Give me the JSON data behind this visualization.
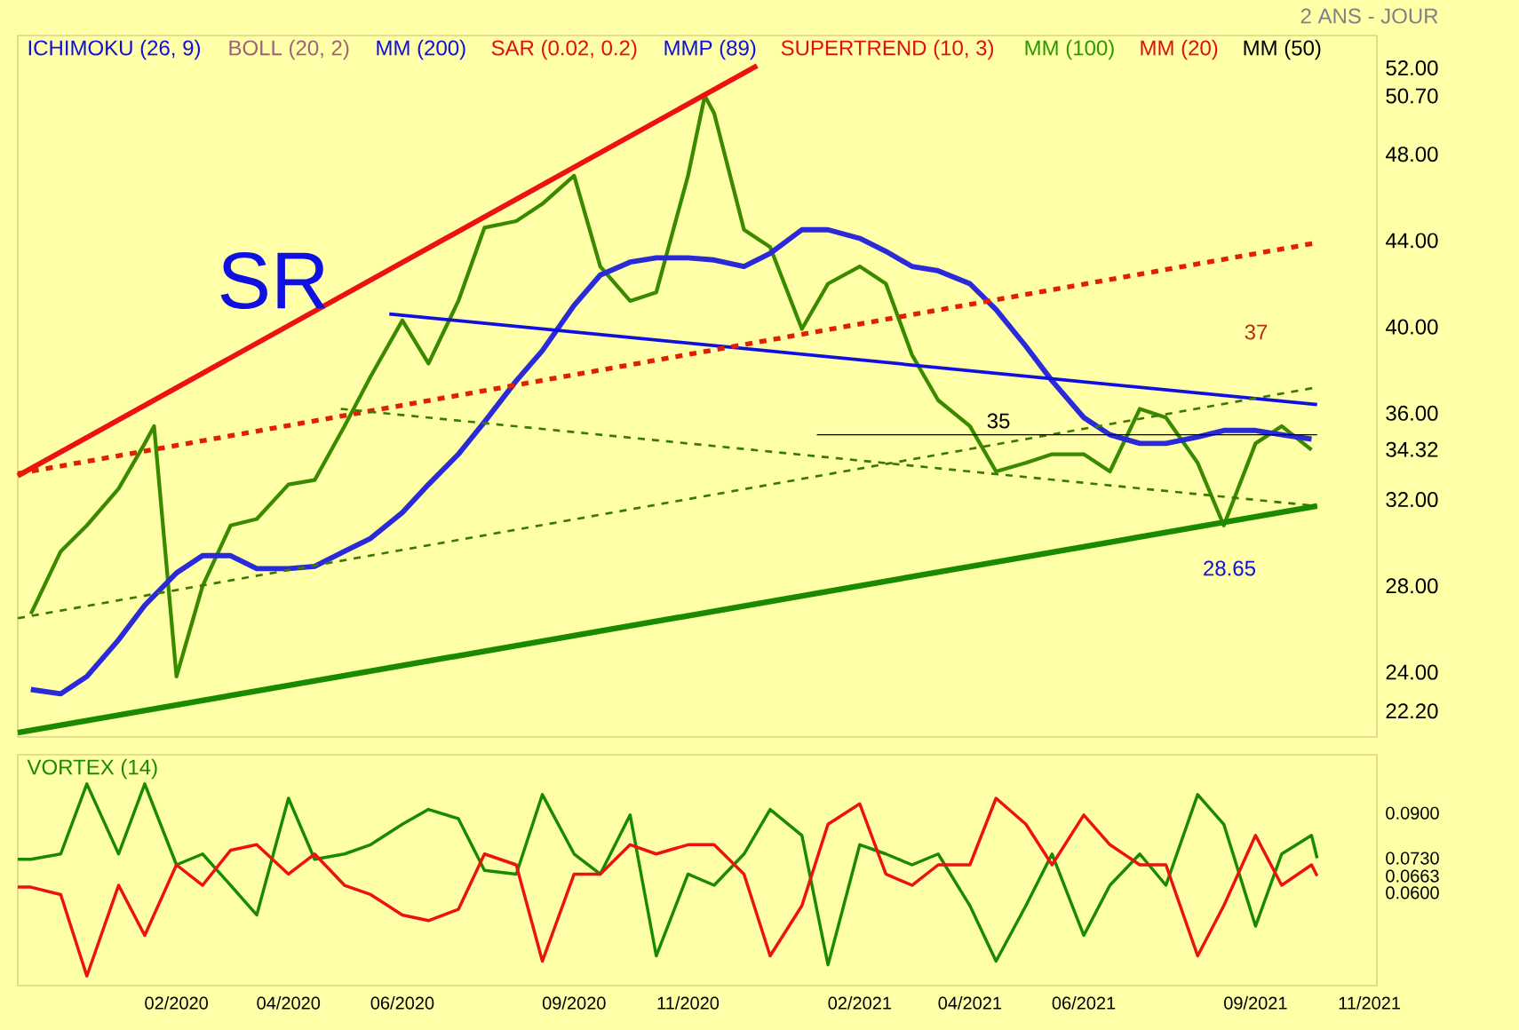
{
  "chart_data": [
    {
      "type": "line",
      "annotations": [
        "ICHIMOKU (26, 9)",
        "BOLL (20, 2)",
        "MM (200)",
        "SAR (0.02, 0.2)",
        "MMP (89)",
        "SUPERTREND (10, 3)",
        "MM (100)",
        "MM (20)",
        "MM (50)",
        "2 ANS - JOUR",
        "SR",
        "37",
        "35",
        "28.65"
      ],
      "xlim": [
        "2019-11-08",
        "2021-11-05"
      ],
      "xticks": [
        {
          "value": "2020-02",
          "label": null
        },
        {
          "value": "2020-04",
          "label": null
        },
        {
          "value": "2020-06",
          "label": null
        },
        {
          "value": "2020-09",
          "label": null
        },
        {
          "value": "2020-11",
          "label": null
        },
        {
          "value": "2021-02",
          "label": null
        },
        {
          "value": "2021-04",
          "label": null
        },
        {
          "value": "2021-06",
          "label": null
        },
        {
          "value": "2021-09",
          "label": null
        },
        {
          "value": "2021-11",
          "label": null
        }
      ],
      "ylim": [
        21,
        53.5
      ],
      "yticks": [
        {
          "value": 24,
          "label": "24.00"
        },
        {
          "value": 28,
          "label": "28.00"
        },
        {
          "value": 32,
          "label": "32.00"
        },
        {
          "value": 36,
          "label": "36.00"
        },
        {
          "value": 40,
          "label": "40.00"
        },
        {
          "value": 44,
          "label": "44.00"
        },
        {
          "value": 48,
          "label": "48.00"
        },
        {
          "value": 52,
          "label": "52.00"
        },
        {
          "value": 50.7,
          "label": "50.70"
        },
        {
          "value": 34.32,
          "label": "34.32"
        },
        {
          "value": 22.2,
          "label": "22.20"
        }
      ],
      "tick_labels": "y",
      "series": [
        {
          "color": "#3a8a00",
          "x": [
            "2019-11-15",
            "2019-12-01",
            "2019-12-15",
            "2020-01-01",
            "2020-01-15",
            "2020-01-20",
            "2020-02-01",
            "2020-02-15",
            "2020-03-01",
            "2020-03-15",
            "2020-04-01",
            "2020-04-15",
            "2020-05-01",
            "2020-05-15",
            "2020-06-01",
            "2020-06-15",
            "2020-07-01",
            "2020-07-15",
            "2020-08-01",
            "2020-08-15",
            "2020-09-01",
            "2020-09-15",
            "2020-10-01",
            "2020-10-15",
            "2020-11-01",
            "2020-11-10",
            "2020-11-15",
            "2020-12-01",
            "2020-12-15",
            "2021-01-01",
            "2021-01-15",
            "2021-02-01",
            "2021-02-15",
            "2021-03-01",
            "2021-03-15",
            "2021-04-01",
            "2021-04-15",
            "2021-05-01",
            "2021-05-15",
            "2021-06-01",
            "2021-06-15",
            "2021-07-01",
            "2021-07-15",
            "2021-08-01",
            "2021-08-15",
            "2021-09-01",
            "2021-09-15",
            "2021-10-01"
          ],
          "values": [
            26.7,
            29.6,
            30.8,
            32.5,
            34.6,
            35.4,
            23.8,
            28.0,
            30.8,
            31.1,
            32.7,
            32.9,
            35.4,
            37.7,
            40.3,
            38.3,
            41.2,
            44.6,
            44.9,
            45.7,
            47.0,
            42.8,
            41.2,
            41.6,
            47.0,
            50.7,
            49.9,
            44.5,
            43.7,
            39.9,
            42.0,
            42.8,
            42.0,
            38.7,
            36.6,
            35.4,
            33.3,
            33.7,
            34.1,
            34.1,
            33.3,
            36.2,
            35.8,
            33.7,
            30.8,
            34.6,
            35.4,
            34.3
          ]
        },
        {
          "color": "#2a2ad8",
          "x": [
            "2019-11-15",
            "2019-12-01",
            "2019-12-15",
            "2020-01-01",
            "2020-01-15",
            "2020-02-01",
            "2020-02-15",
            "2020-03-01",
            "2020-03-15",
            "2020-04-01",
            "2020-04-15",
            "2020-05-01",
            "2020-05-15",
            "2020-06-01",
            "2020-06-15",
            "2020-07-01",
            "2020-07-15",
            "2020-08-01",
            "2020-08-15",
            "2020-09-01",
            "2020-09-15",
            "2020-10-01",
            "2020-10-15",
            "2020-11-01",
            "2020-11-15",
            "2020-12-01",
            "2020-12-15",
            "2021-01-01",
            "2021-01-15",
            "2021-02-01",
            "2021-02-15",
            "2021-03-01",
            "2021-03-15",
            "2021-04-01",
            "2021-04-15",
            "2021-05-01",
            "2021-05-15",
            "2021-06-01",
            "2021-06-15",
            "2021-07-01",
            "2021-07-15",
            "2021-08-01",
            "2021-08-15",
            "2021-09-01",
            "2021-09-15",
            "2021-10-01"
          ],
          "values": [
            23.2,
            23.0,
            23.8,
            25.5,
            27.1,
            28.6,
            29.4,
            29.4,
            28.8,
            28.8,
            28.9,
            29.6,
            30.2,
            31.4,
            32.7,
            34.1,
            35.6,
            37.5,
            38.9,
            41.0,
            42.4,
            43.0,
            43.2,
            43.2,
            43.1,
            42.8,
            43.4,
            44.5,
            44.5,
            44.1,
            43.5,
            42.8,
            42.6,
            42.0,
            40.8,
            39.1,
            37.5,
            35.8,
            35.0,
            34.6,
            34.6,
            34.9,
            35.2,
            35.2,
            35.0,
            34.8
          ]
        },
        {
          "color": "#ee1111",
          "x": [
            "2019-11-08",
            "2020-12-08"
          ],
          "values": [
            33.1,
            52.1
          ]
        },
        {
          "color": "#1a8a00",
          "x": [
            "2019-11-08",
            "2021-10-04"
          ],
          "values": [
            21.2,
            31.7
          ]
        },
        {
          "color": "#1010e0",
          "x": [
            "2020-05-25",
            "2021-10-04"
          ],
          "values": [
            40.6,
            36.4
          ]
        },
        {
          "color": "#e02000",
          "line_style": "dashed",
          "x": [
            "2019-11-08",
            "2021-10-04"
          ],
          "values": [
            33.2,
            43.9
          ]
        },
        {
          "color": "#3a7a00",
          "line_style": "dashed",
          "x": [
            "2019-11-08",
            "2021-10-04"
          ],
          "values": [
            26.5,
            37.2
          ]
        },
        {
          "color": "#3a7a00",
          "line_style": "dashed",
          "x": [
            "2020-04-29",
            "2021-10-04"
          ],
          "values": [
            36.2,
            31.7
          ]
        },
        {
          "color": "#000000",
          "x": [
            "2021-01-09",
            "2021-10-04"
          ],
          "values": [
            35,
            35
          ]
        }
      ]
    },
    {
      "type": "line",
      "title": "VORTEX (14)",
      "x": [
        "2019-11-08",
        "2019-11-15",
        "2019-12-01",
        "2019-12-15",
        "2020-01-01",
        "2020-01-15",
        "2020-02-01",
        "2020-02-15",
        "2020-03-01",
        "2020-03-15",
        "2020-04-01",
        "2020-04-15",
        "2020-05-01",
        "2020-05-15",
        "2020-06-01",
        "2020-06-15",
        "2020-07-01",
        "2020-07-15",
        "2020-08-01",
        "2020-08-15",
        "2020-09-01",
        "2020-09-15",
        "2020-10-01",
        "2020-10-15",
        "2020-11-01",
        "2020-11-15",
        "2020-12-01",
        "2020-12-15",
        "2021-01-01",
        "2021-01-15",
        "2021-02-01",
        "2021-02-15",
        "2021-03-01",
        "2021-03-15",
        "2021-04-01",
        "2021-04-15",
        "2021-05-01",
        "2021-05-15",
        "2021-06-01",
        "2021-06-15",
        "2021-07-01",
        "2021-07-15",
        "2021-08-01",
        "2021-08-15",
        "2021-09-01",
        "2021-09-15",
        "2021-10-01",
        "2021-10-04"
      ],
      "xlim": [
        "2019-11-08",
        "2021-11-05"
      ],
      "xticks": [
        {
          "value": "2020-02",
          "label": "02/2020"
        },
        {
          "value": "2020-04",
          "label": "04/2020"
        },
        {
          "value": "2020-06",
          "label": "06/2020"
        },
        {
          "value": "2020-09",
          "label": "09/2020"
        },
        {
          "value": "2020-11",
          "label": "11/2020"
        },
        {
          "value": "2021-02",
          "label": "02/2021"
        },
        {
          "value": "2021-04",
          "label": "04/2021"
        },
        {
          "value": "2021-06",
          "label": "06/2021"
        },
        {
          "value": "2021-09",
          "label": "09/2021"
        },
        {
          "value": "2021-11",
          "label": "11/2021"
        }
      ],
      "ylim": [
        0.025,
        0.112
      ],
      "yticks": [
        {
          "value": 0.09,
          "label": "0.0900"
        },
        {
          "value": 0.06,
          "label": "0.0600"
        },
        {
          "value": 0.073,
          "label": "0.0730"
        },
        {
          "value": 0.0663,
          "label": "0.0663"
        }
      ],
      "series": [
        {
          "color": "#1a8a00",
          "values": [
            0.0726,
            0.0726,
            0.0746,
            0.101,
            0.0746,
            0.101,
            0.0705,
            0.0746,
            0.0628,
            0.0516,
            0.0956,
            0.0726,
            0.0746,
            0.0781,
            0.0858,
            0.0914,
            0.0879,
            0.0684,
            0.067,
            0.097,
            0.0746,
            0.067,
            0.0893,
            0.0362,
            0.067,
            0.0628,
            0.0746,
            0.0914,
            0.0816,
            0.0328,
            0.0781,
            0.0746,
            0.0705,
            0.0746,
            0.0551,
            0.0342,
            0.0551,
            0.0746,
            0.0439,
            0.0628,
            0.0746,
            0.0628,
            0.097,
            0.0858,
            0.0474,
            0.0746,
            0.0816,
            0.073
          ]
        },
        {
          "color": "#ee1111",
          "values": [
            0.0621,
            0.0621,
            0.0593,
            0.0286,
            0.0628,
            0.0439,
            0.0705,
            0.0628,
            0.076,
            0.0781,
            0.067,
            0.0746,
            0.0628,
            0.0593,
            0.0516,
            0.0495,
            0.0537,
            0.0746,
            0.0705,
            0.0342,
            0.067,
            0.067,
            0.0781,
            0.0746,
            0.0781,
            0.0781,
            0.067,
            0.0362,
            0.0551,
            0.0858,
            0.0935,
            0.067,
            0.0628,
            0.0705,
            0.0705,
            0.0956,
            0.0858,
            0.0705,
            0.0893,
            0.0781,
            0.0705,
            0.0705,
            0.0362,
            0.0551,
            0.0816,
            0.0628,
            0.0705,
            0.0663
          ]
        }
      ]
    }
  ]
}
